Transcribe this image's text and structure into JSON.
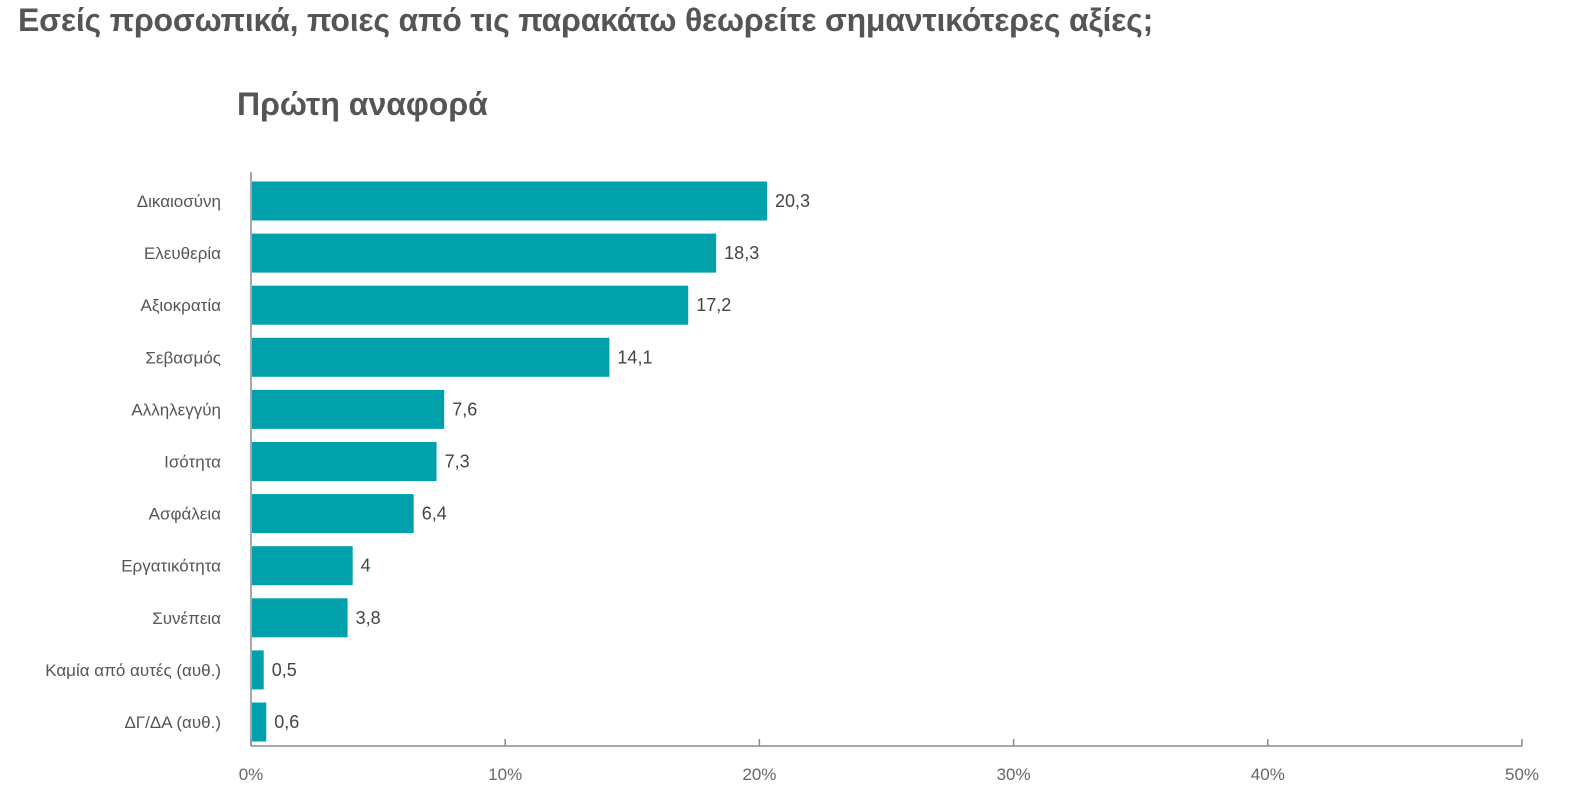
{
  "page": {
    "title": "Εσείς προσωπικά, ποιες από τις παρακάτω θεωρείτε σημαντικότερες αξίες;"
  },
  "colors": {
    "bar": "#00A1AB",
    "axis": "#8a8a8a",
    "text": "#555555"
  },
  "chart_data": {
    "type": "bar",
    "orientation": "horizontal",
    "title": "Πρώτη αναφορά",
    "categories": [
      "Δικαιοσύνη",
      "Ελευθερία",
      "Αξιοκρατία",
      "Σεβασμός",
      "Αλληλεγγύη",
      "Ισότητα",
      "Ασφάλεια",
      "Εργατικότητα",
      "Συνέπεια",
      "Καμία από αυτές (αυθ.)",
      "ΔΓ/ΔΑ (αυθ.)"
    ],
    "values": [
      20.3,
      18.3,
      17.2,
      14.1,
      7.6,
      7.3,
      6.4,
      4,
      3.8,
      0.5,
      0.6
    ],
    "value_labels": [
      "20,3",
      "18,3",
      "17,2",
      "14,1",
      "7,6",
      "7,3",
      "6,4",
      "4",
      "3,8",
      "0,5",
      "0,6"
    ],
    "xlim": [
      0,
      50
    ],
    "x_ticks": [
      0,
      10,
      20,
      30,
      40,
      50
    ],
    "x_tick_labels": [
      "0%",
      "10%",
      "20%",
      "30%",
      "40%",
      "50%"
    ],
    "grid": false,
    "legend": "none"
  }
}
